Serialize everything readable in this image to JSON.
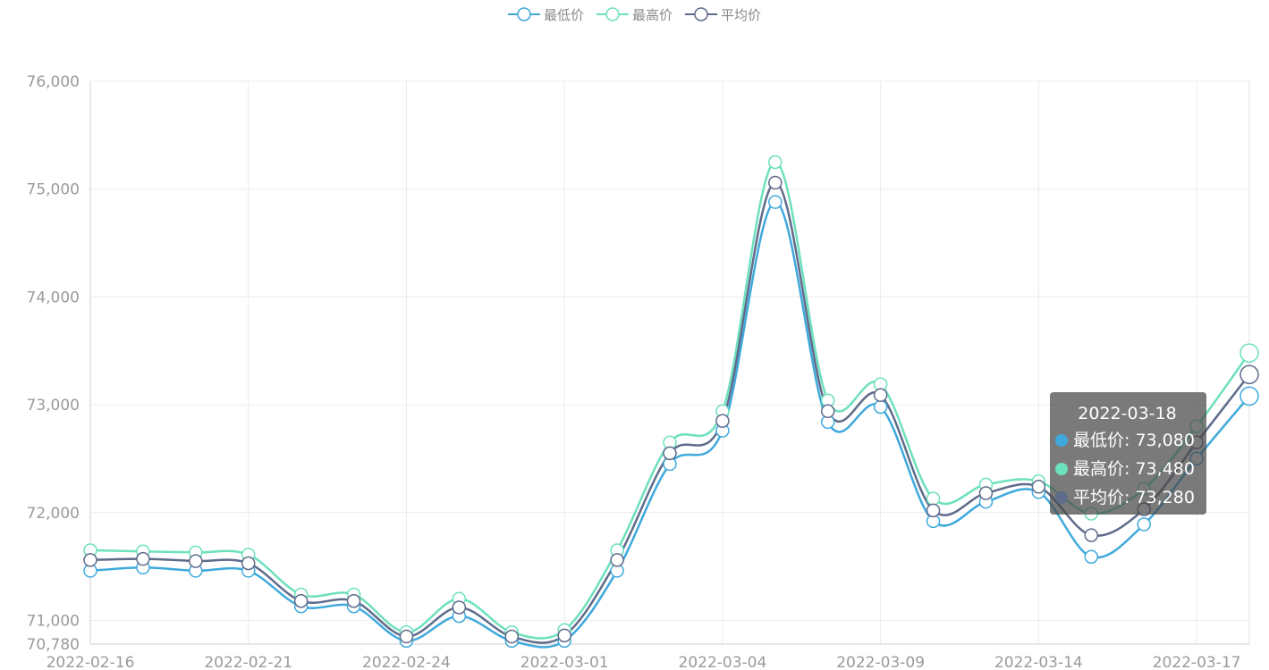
{
  "legend": [
    {
      "name": "最低价",
      "color": "#3fa9dc"
    },
    {
      "name": "最高价",
      "color": "#6de0be"
    },
    {
      "name": "平均价",
      "color": "#5f6b8a"
    }
  ],
  "tooltip": {
    "date": "2022-03-18",
    "rows": [
      {
        "label": "最低价: 73,080",
        "color": "#3fa9dc"
      },
      {
        "label": "最高价: 73,480",
        "color": "#6de0be"
      },
      {
        "label": "平均价: 73,280",
        "color": "#5f6b8a"
      }
    ]
  },
  "chart_data": {
    "type": "line",
    "smooth": true,
    "x": [
      "2022-02-16",
      "2022-02-17",
      "2022-02-18",
      "2022-02-21",
      "2022-02-22",
      "2022-02-23",
      "2022-02-24",
      "2022-02-25",
      "2022-02-28",
      "2022-03-01",
      "2022-03-02",
      "2022-03-03",
      "2022-03-04",
      "2022-03-07",
      "2022-03-08",
      "2022-03-09",
      "2022-03-10",
      "2022-03-11",
      "2022-03-14",
      "2022-03-15",
      "2022-03-16",
      "2022-03-17",
      "2022-03-18"
    ],
    "x_tick_labels": [
      "2022-02-16",
      "2022-02-21",
      "2022-02-24",
      "2022-03-01",
      "2022-03-04",
      "2022-03-09",
      "2022-03-14",
      "2022-03-17"
    ],
    "y_tick_values": [
      70780,
      71000,
      72000,
      73000,
      74000,
      75000,
      76000
    ],
    "y_tick_labels": [
      "70,780",
      "71,000",
      "72,000",
      "73,000",
      "74,000",
      "75,000",
      "76,000"
    ],
    "ylim": [
      70780,
      76000
    ],
    "grid": true,
    "legend_position": "top-center",
    "series": [
      {
        "name": "最低价",
        "color": "#3fa9dc",
        "values": [
          71460,
          71490,
          71460,
          71460,
          71130,
          71130,
          70810,
          71040,
          70810,
          70810,
          71460,
          72450,
          72760,
          74880,
          72840,
          72980,
          71920,
          72100,
          72190,
          71590,
          71890,
          72500,
          73080
        ]
      },
      {
        "name": "最高价",
        "color": "#6de0be",
        "values": [
          71650,
          71640,
          71630,
          71610,
          71240,
          71240,
          70890,
          71200,
          70890,
          70910,
          71650,
          72650,
          72940,
          75250,
          73040,
          73190,
          72130,
          72260,
          72290,
          71990,
          72220,
          72800,
          73480
        ]
      },
      {
        "name": "平均价",
        "color": "#5f6b8a",
        "values": [
          71560,
          71570,
          71550,
          71530,
          71180,
          71180,
          70850,
          71120,
          70850,
          70860,
          71560,
          72550,
          72850,
          75060,
          72940,
          73090,
          72020,
          72180,
          72240,
          71790,
          72030,
          72650,
          73280
        ]
      }
    ]
  }
}
